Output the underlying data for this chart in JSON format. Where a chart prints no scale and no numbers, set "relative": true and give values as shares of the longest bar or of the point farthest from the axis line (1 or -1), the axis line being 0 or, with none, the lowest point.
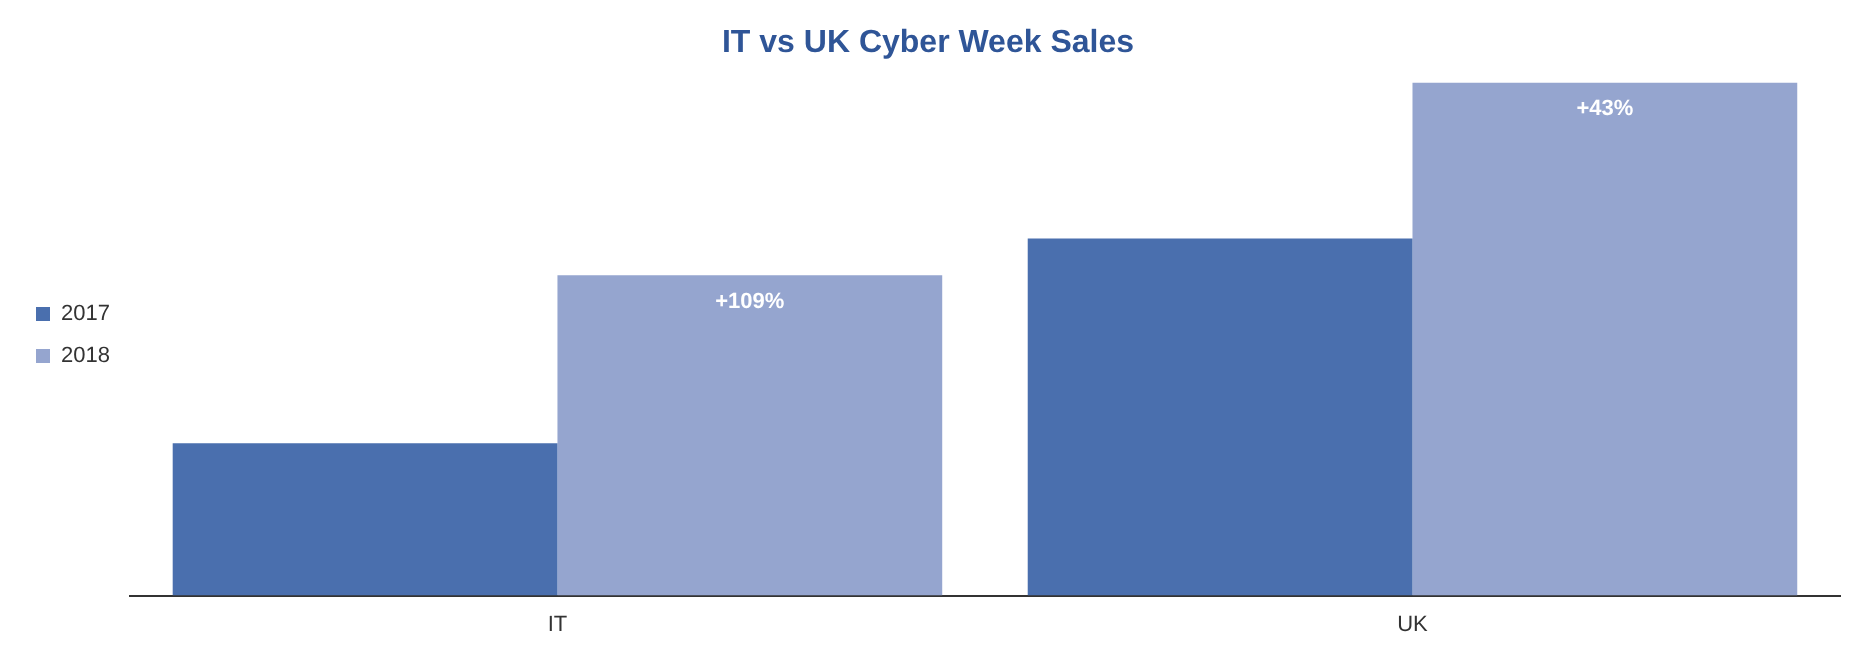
{
  "chart_data": {
    "type": "bar",
    "title": "IT vs UK Cyber Week Sales",
    "categories": [
      "IT",
      "UK"
    ],
    "relative": true,
    "legend": "left",
    "grid": false,
    "series": [
      {
        "name": "2017",
        "color": "#4a6fae",
        "values": [
          0.297,
          0.696
        ]
      },
      {
        "name": "2018",
        "color": "#95a5cf",
        "values": [
          0.624,
          1
        ]
      }
    ],
    "annotations": [
      "+109%",
      "+43%"
    ]
  }
}
